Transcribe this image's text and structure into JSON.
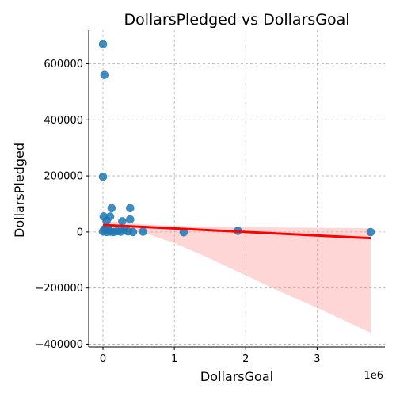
{
  "chart_data": {
    "type": "scatter",
    "title": "DollarsPledged vs DollarsGoal",
    "xlabel": "DollarsGoal",
    "ylabel": "DollarsPledged",
    "x_offset_label": "1e6",
    "x_unit_scale": 1000000,
    "xlim": [
      -200000,
      3950000
    ],
    "ylim": [
      -410000,
      720000
    ],
    "x_ticks": [
      0,
      1000000,
      2000000,
      3000000
    ],
    "x_tick_labels": [
      "0",
      "1",
      "2",
      "3"
    ],
    "y_ticks": [
      -400000,
      -200000,
      0,
      200000,
      400000,
      600000
    ],
    "y_tick_labels": [
      "−400000",
      "−200000",
      "0",
      "200000",
      "400000",
      "600000"
    ],
    "grid": true,
    "point_color": "#1f77b4",
    "regression_color": "#ff0000",
    "ci_color": "#ff9999",
    "points": [
      {
        "x": 0,
        "y": 670000
      },
      {
        "x": 20000,
        "y": 560000
      },
      {
        "x": 0,
        "y": 197000
      },
      {
        "x": 10000,
        "y": 55000
      },
      {
        "x": 50000,
        "y": 40000
      },
      {
        "x": 100000,
        "y": 55000
      },
      {
        "x": 120000,
        "y": 85000
      },
      {
        "x": 380000,
        "y": 85000
      },
      {
        "x": 380000,
        "y": 45000
      },
      {
        "x": 270000,
        "y": 38000
      },
      {
        "x": 0,
        "y": 2000
      },
      {
        "x": 20000,
        "y": 10000
      },
      {
        "x": 50000,
        "y": 0
      },
      {
        "x": 80000,
        "y": 5000
      },
      {
        "x": 110000,
        "y": 1000
      },
      {
        "x": 150000,
        "y": 0
      },
      {
        "x": 200000,
        "y": 3000
      },
      {
        "x": 250000,
        "y": 1000
      },
      {
        "x": 300000,
        "y": 8000
      },
      {
        "x": 350000,
        "y": 2000
      },
      {
        "x": 420000,
        "y": 0
      },
      {
        "x": 560000,
        "y": 1000
      },
      {
        "x": 1130000,
        "y": -1000
      },
      {
        "x": 1890000,
        "y": 4000
      },
      {
        "x": 3750000,
        "y": -500
      }
    ],
    "regression": {
      "x_start": 0,
      "x_end": 3750000,
      "y_start": 25000,
      "y_end": -22000
    },
    "confidence_band": {
      "x": [
        0,
        100000,
        300000,
        600000,
        1000000,
        1500000,
        2000000,
        2500000,
        3000000,
        3500000,
        3750000
      ],
      "upper": [
        42000,
        38000,
        33000,
        26000,
        22000,
        19000,
        17000,
        16000,
        15000,
        14000,
        14000
      ],
      "lower": [
        10000,
        8000,
        5000,
        -5000,
        -40000,
        -95000,
        -155000,
        -215000,
        -270000,
        -330000,
        -360000
      ]
    }
  }
}
